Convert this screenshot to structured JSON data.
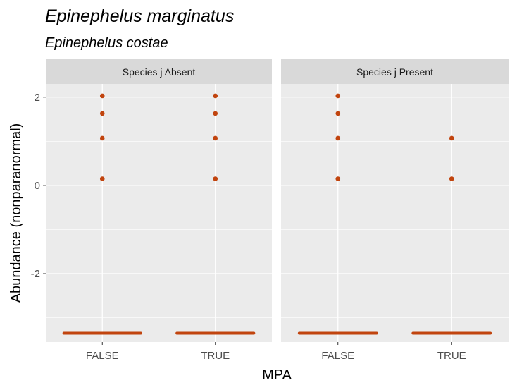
{
  "chart_data": {
    "type": "scatter",
    "title": "Epinephelus marginatus",
    "subtitle": "Epinephelus costae",
    "xlabel": "MPA",
    "ylabel": "Abundance (nonparanormal)",
    "categories": [
      "FALSE",
      "TRUE"
    ],
    "y_ticks": [
      2,
      0,
      -2
    ],
    "ylim": [
      -3.55,
      2.3
    ],
    "grid": true,
    "point_color": "#C1440E",
    "panel_bg": "#EBEBEB",
    "strip_bg": "#D9D9D9",
    "grid_color": "#FFFFFF",
    "panels": [
      {
        "label": "Species j Absent",
        "points": [
          {
            "x": "FALSE",
            "y": 2.03
          },
          {
            "x": "FALSE",
            "y": 1.63
          },
          {
            "x": "FALSE",
            "y": 1.07
          },
          {
            "x": "FALSE",
            "y": 0.15
          },
          {
            "x": "TRUE",
            "y": 2.03
          },
          {
            "x": "TRUE",
            "y": 1.63
          },
          {
            "x": "TRUE",
            "y": 1.07
          },
          {
            "x": "TRUE",
            "y": 0.15
          }
        ],
        "baseline": [
          {
            "x": "FALSE",
            "y": -3.35
          },
          {
            "x": "TRUE",
            "y": -3.35
          }
        ]
      },
      {
        "label": "Species j Present",
        "points": [
          {
            "x": "FALSE",
            "y": 2.03
          },
          {
            "x": "FALSE",
            "y": 1.63
          },
          {
            "x": "FALSE",
            "y": 1.07
          },
          {
            "x": "FALSE",
            "y": 0.15
          },
          {
            "x": "TRUE",
            "y": 1.07
          },
          {
            "x": "TRUE",
            "y": 0.15
          }
        ],
        "baseline": [
          {
            "x": "FALSE",
            "y": -3.35
          },
          {
            "x": "TRUE",
            "y": -3.35
          }
        ]
      }
    ]
  }
}
